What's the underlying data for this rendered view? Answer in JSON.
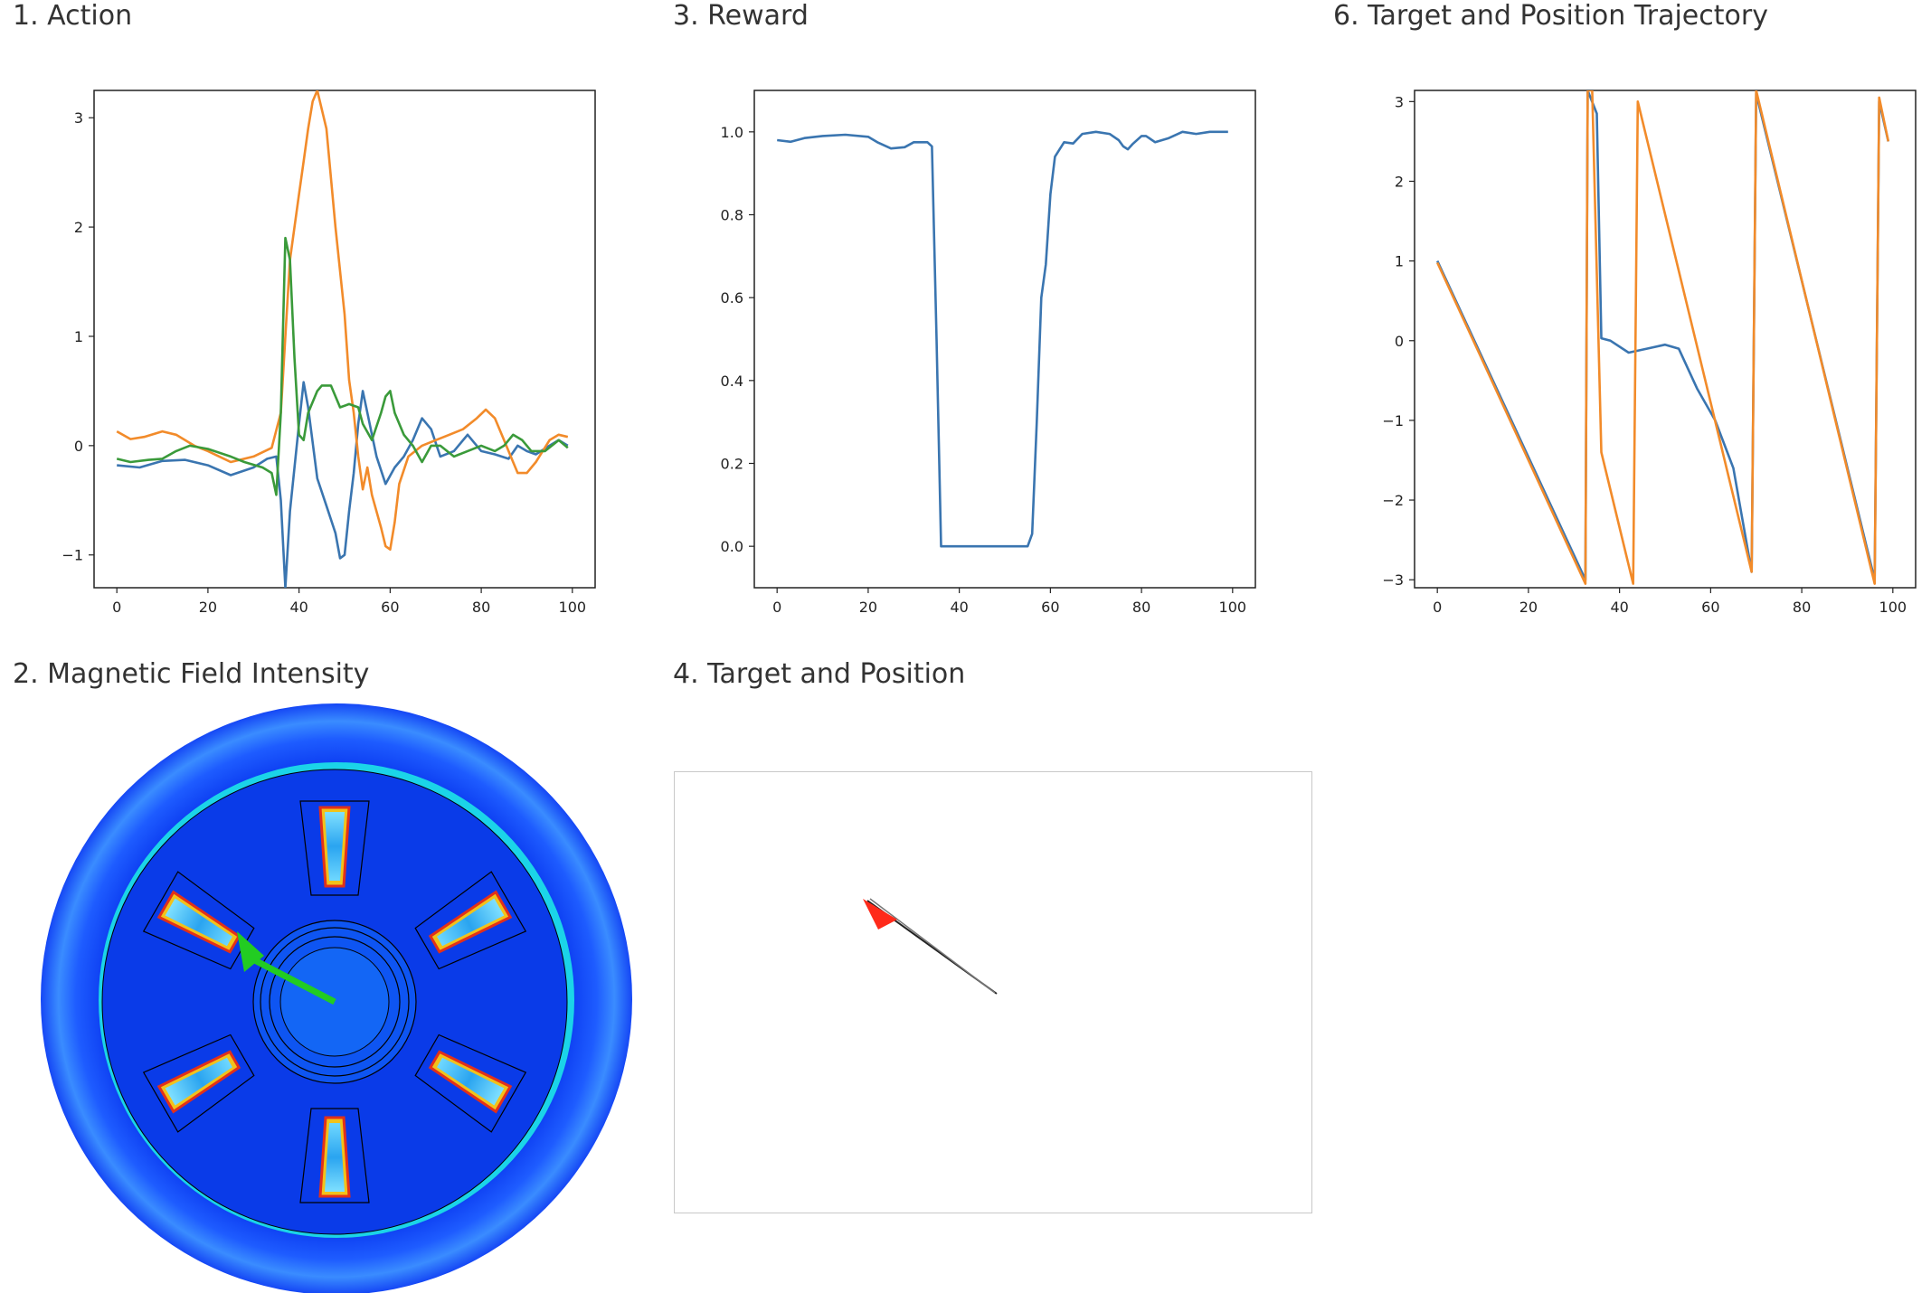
{
  "panels": {
    "action_title": "1. Action",
    "reward_title": "3. Reward",
    "trajectory_title": "6. Target and Position Trajectory",
    "field_title": "2. Magnetic Field Intensity",
    "position_title": "4. Target and Position"
  },
  "colors": {
    "series_blue": "#3a75b0",
    "series_orange": "#f28b2a",
    "series_green": "#3a9a3a",
    "field_background": "#0b3bf0",
    "field_arrow": "#22cc22",
    "target_arrow": "#ff2a1a"
  },
  "chart_data": [
    {
      "type": "line",
      "title": "1. Action",
      "xlim": [
        -5,
        105
      ],
      "ylim": [
        -1.3,
        3.25
      ],
      "xticks": [
        0,
        20,
        40,
        60,
        80,
        100
      ],
      "yticks": [
        -1,
        0,
        1,
        2,
        3
      ],
      "grid": false,
      "series": [
        {
          "color": "#3a75b0",
          "points": [
            [
              0,
              -0.18
            ],
            [
              5,
              -0.2
            ],
            [
              10,
              -0.14
            ],
            [
              15,
              -0.13
            ],
            [
              20,
              -0.18
            ],
            [
              25,
              -0.27
            ],
            [
              30,
              -0.2
            ],
            [
              33,
              -0.12
            ],
            [
              35,
              -0.1
            ],
            [
              36,
              -0.5
            ],
            [
              37,
              -1.3
            ],
            [
              38,
              -0.6
            ],
            [
              39,
              -0.2
            ],
            [
              40,
              0.2
            ],
            [
              41,
              0.58
            ],
            [
              42,
              0.35
            ],
            [
              44,
              -0.3
            ],
            [
              46,
              -0.55
            ],
            [
              48,
              -0.8
            ],
            [
              49,
              -1.03
            ],
            [
              50,
              -1.0
            ],
            [
              51,
              -0.6
            ],
            [
              52,
              -0.25
            ],
            [
              53,
              0.2
            ],
            [
              54,
              0.5
            ],
            [
              55,
              0.3
            ],
            [
              57,
              -0.1
            ],
            [
              59,
              -0.35
            ],
            [
              61,
              -0.2
            ],
            [
              63,
              -0.1
            ],
            [
              65,
              0.05
            ],
            [
              67,
              0.25
            ],
            [
              69,
              0.15
            ],
            [
              71,
              -0.1
            ],
            [
              74,
              -0.05
            ],
            [
              77,
              0.1
            ],
            [
              80,
              -0.05
            ],
            [
              83,
              -0.08
            ],
            [
              86,
              -0.12
            ],
            [
              88,
              0.0
            ],
            [
              90,
              -0.05
            ],
            [
              92,
              -0.08
            ],
            [
              95,
              0.0
            ],
            [
              97,
              0.05
            ],
            [
              99,
              0.0
            ]
          ]
        },
        {
          "color": "#f28b2a",
          "points": [
            [
              0,
              0.13
            ],
            [
              3,
              0.06
            ],
            [
              6,
              0.08
            ],
            [
              10,
              0.13
            ],
            [
              13,
              0.1
            ],
            [
              17,
              0.0
            ],
            [
              20,
              -0.05
            ],
            [
              25,
              -0.15
            ],
            [
              30,
              -0.1
            ],
            [
              34,
              -0.02
            ],
            [
              36,
              0.3
            ],
            [
              37,
              1.0
            ],
            [
              38,
              1.7
            ],
            [
              40,
              2.3
            ],
            [
              41,
              2.6
            ],
            [
              42,
              2.9
            ],
            [
              43,
              3.15
            ],
            [
              44,
              3.25
            ],
            [
              46,
              2.9
            ],
            [
              48,
              2.0
            ],
            [
              50,
              1.2
            ],
            [
              51,
              0.6
            ],
            [
              52,
              0.3
            ],
            [
              53,
              -0.1
            ],
            [
              54,
              -0.4
            ],
            [
              55,
              -0.2
            ],
            [
              56,
              -0.45
            ],
            [
              58,
              -0.75
            ],
            [
              59,
              -0.92
            ],
            [
              60,
              -0.95
            ],
            [
              61,
              -0.7
            ],
            [
              62,
              -0.35
            ],
            [
              64,
              -0.1
            ],
            [
              67,
              0.0
            ],
            [
              70,
              0.05
            ],
            [
              73,
              0.1
            ],
            [
              76,
              0.15
            ],
            [
              79,
              0.25
            ],
            [
              81,
              0.33
            ],
            [
              83,
              0.25
            ],
            [
              85,
              0.05
            ],
            [
              87,
              -0.15
            ],
            [
              88,
              -0.25
            ],
            [
              90,
              -0.25
            ],
            [
              92,
              -0.15
            ],
            [
              95,
              0.05
            ],
            [
              97,
              0.1
            ],
            [
              99,
              0.08
            ]
          ]
        },
        {
          "color": "#3a9a3a",
          "points": [
            [
              0,
              -0.12
            ],
            [
              3,
              -0.15
            ],
            [
              7,
              -0.13
            ],
            [
              10,
              -0.12
            ],
            [
              13,
              -0.05
            ],
            [
              16,
              0.0
            ],
            [
              20,
              -0.03
            ],
            [
              25,
              -0.1
            ],
            [
              28,
              -0.15
            ],
            [
              32,
              -0.2
            ],
            [
              34,
              -0.25
            ],
            [
              35,
              -0.45
            ],
            [
              36,
              0.3
            ],
            [
              37,
              1.9
            ],
            [
              38,
              1.7
            ],
            [
              39,
              0.8
            ],
            [
              40,
              0.1
            ],
            [
              41,
              0.05
            ],
            [
              42,
              0.3
            ],
            [
              44,
              0.5
            ],
            [
              45,
              0.55
            ],
            [
              47,
              0.55
            ],
            [
              49,
              0.35
            ],
            [
              51,
              0.38
            ],
            [
              53,
              0.35
            ],
            [
              54,
              0.2
            ],
            [
              56,
              0.05
            ],
            [
              58,
              0.3
            ],
            [
              59,
              0.45
            ],
            [
              60,
              0.5
            ],
            [
              61,
              0.3
            ],
            [
              63,
              0.1
            ],
            [
              65,
              0.0
            ],
            [
              67,
              -0.15
            ],
            [
              69,
              0.0
            ],
            [
              71,
              0.0
            ],
            [
              74,
              -0.1
            ],
            [
              77,
              -0.05
            ],
            [
              80,
              0.0
            ],
            [
              83,
              -0.05
            ],
            [
              85,
              0.0
            ],
            [
              87,
              0.1
            ],
            [
              89,
              0.05
            ],
            [
              91,
              -0.05
            ],
            [
              94,
              -0.05
            ],
            [
              97,
              0.05
            ],
            [
              99,
              -0.02
            ]
          ]
        }
      ]
    },
    {
      "type": "line",
      "title": "3. Reward",
      "xlim": [
        -5,
        105
      ],
      "ylim": [
        -0.1,
        1.1
      ],
      "xticks": [
        0,
        20,
        40,
        60,
        80,
        100
      ],
      "yticks": [
        0.0,
        0.2,
        0.4,
        0.6,
        0.8,
        1.0
      ],
      "grid": false,
      "series": [
        {
          "color": "#3a75b0",
          "points": [
            [
              0,
              0.98
            ],
            [
              3,
              0.976
            ],
            [
              6,
              0.985
            ],
            [
              10,
              0.99
            ],
            [
              15,
              0.993
            ],
            [
              20,
              0.988
            ],
            [
              22,
              0.975
            ],
            [
              25,
              0.96
            ],
            [
              28,
              0.963
            ],
            [
              30,
              0.975
            ],
            [
              33,
              0.975
            ],
            [
              34,
              0.965
            ],
            [
              35,
              0.5
            ],
            [
              36,
              0.0
            ],
            [
              38,
              0.0
            ],
            [
              55,
              0.0
            ],
            [
              56,
              0.03
            ],
            [
              57,
              0.3
            ],
            [
              58,
              0.6
            ],
            [
              59,
              0.68
            ],
            [
              60,
              0.85
            ],
            [
              61,
              0.94
            ],
            [
              63,
              0.975
            ],
            [
              65,
              0.972
            ],
            [
              67,
              0.995
            ],
            [
              70,
              1.0
            ],
            [
              73,
              0.995
            ],
            [
              75,
              0.98
            ],
            [
              76,
              0.965
            ],
            [
              77,
              0.958
            ],
            [
              78,
              0.97
            ],
            [
              80,
              0.99
            ],
            [
              81,
              0.99
            ],
            [
              83,
              0.975
            ],
            [
              86,
              0.985
            ],
            [
              89,
              1.0
            ],
            [
              92,
              0.995
            ],
            [
              95,
              1.0
            ],
            [
              99,
              1.0
            ]
          ]
        }
      ]
    },
    {
      "type": "line",
      "title": "6. Target and Position Trajectory",
      "xlim": [
        -5,
        105
      ],
      "ylim": [
        -3.1,
        3.14
      ],
      "xticks": [
        0,
        20,
        40,
        60,
        80,
        100
      ],
      "yticks": [
        -3,
        -2,
        -1,
        0,
        1,
        2,
        3
      ],
      "grid": false,
      "series": [
        {
          "color": "#3a75b0",
          "points": [
            [
              0,
              1.0
            ],
            [
              32.5,
              -3.0
            ],
            [
              33,
              3.14
            ],
            [
              35,
              2.85
            ],
            [
              36,
              0.03
            ],
            [
              38,
              0.0
            ],
            [
              42,
              -0.15
            ],
            [
              46,
              -0.1
            ],
            [
              50,
              -0.05
            ],
            [
              53,
              -0.1
            ],
            [
              57,
              -0.6
            ],
            [
              61,
              -1.0
            ],
            [
              65,
              -1.6
            ],
            [
              69,
              -2.9
            ],
            [
              70,
              3.1
            ],
            [
              96,
              -3.0
            ],
            [
              97,
              3.0
            ],
            [
              99,
              2.5
            ]
          ]
        },
        {
          "color": "#f28b2a",
          "points": [
            [
              0,
              0.98
            ],
            [
              32.5,
              -3.05
            ],
            [
              33,
              3.14
            ],
            [
              34,
              3.14
            ],
            [
              36,
              -1.4
            ],
            [
              43,
              -3.05
            ],
            [
              44,
              3.0
            ],
            [
              69,
              -2.9
            ],
            [
              70,
              3.14
            ],
            [
              96,
              -3.05
            ],
            [
              97,
              3.05
            ],
            [
              99,
              2.5
            ]
          ]
        }
      ]
    }
  ]
}
